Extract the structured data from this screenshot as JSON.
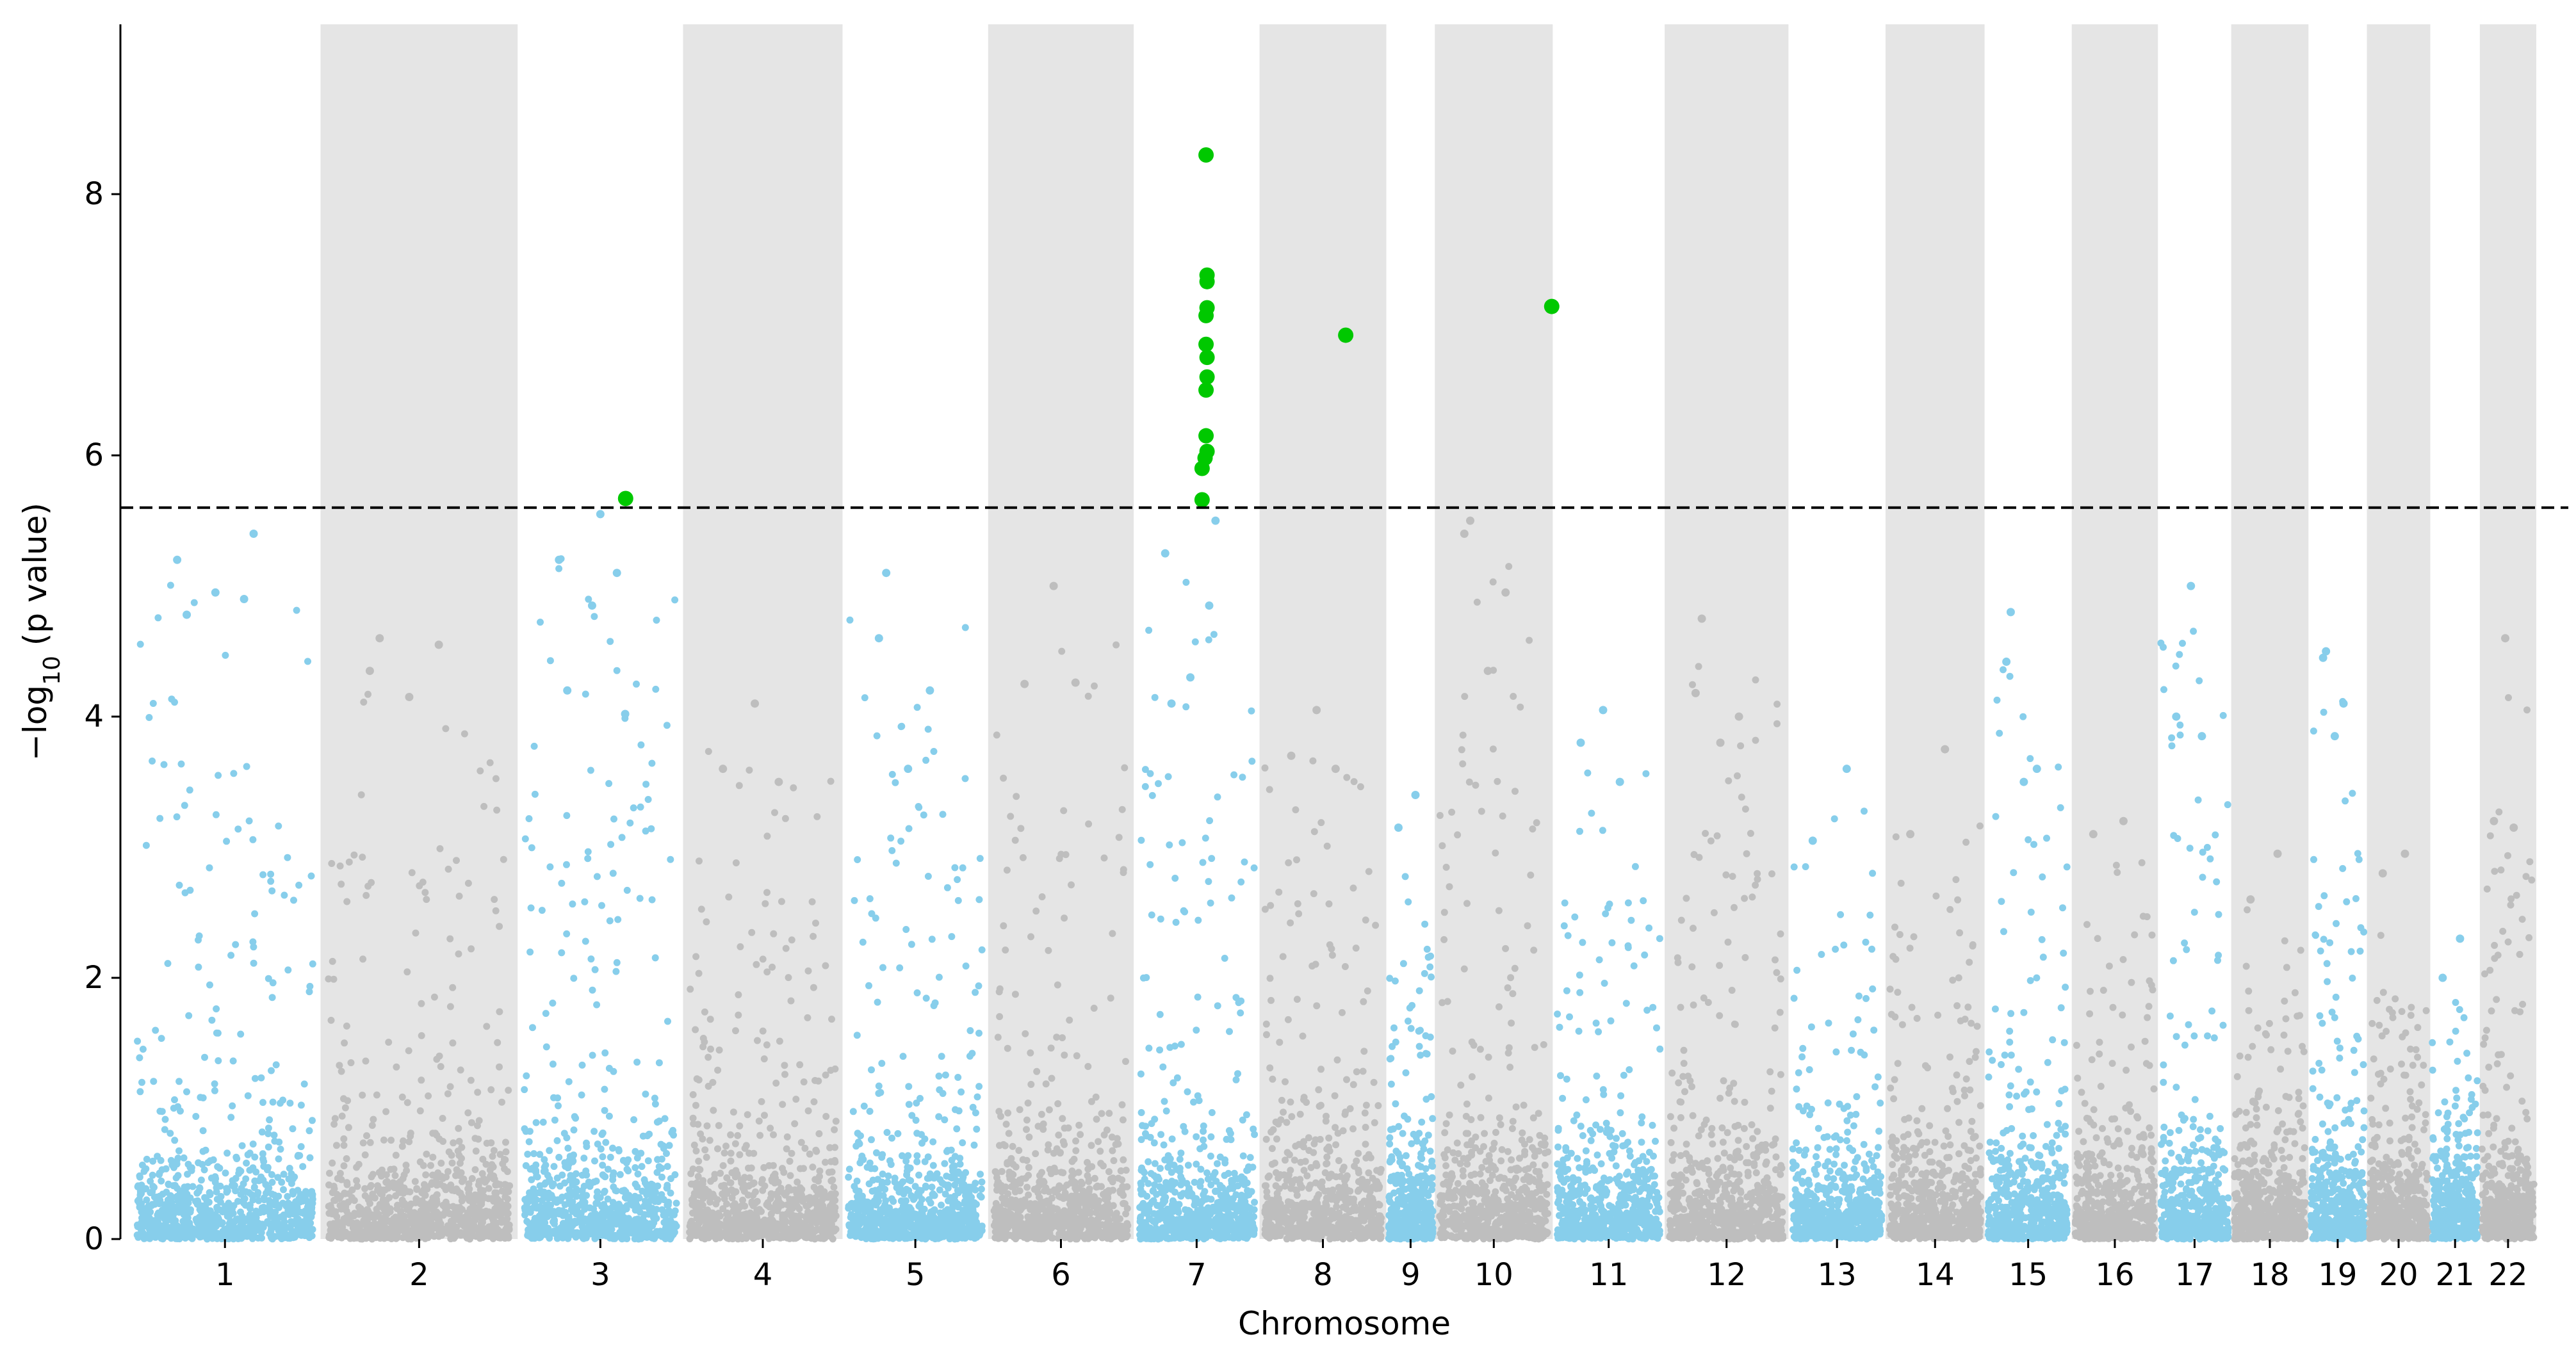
{
  "chart_data": {
    "type": "scatter",
    "subtype": "manhattan",
    "title": "",
    "xlabel": "Chromosome",
    "ylabel_main": "−log",
    "ylabel_sub": "10",
    "ylabel_tail": " (p value)",
    "ylim": [
      0,
      9.3
    ],
    "yticks": [
      0,
      2,
      4,
      6,
      8
    ],
    "significance_threshold": 5.6,
    "colors": {
      "odd_chromosome": "#87ceeb",
      "even_chromosome": "#bebebe",
      "significant": "#00c800",
      "band": "#e5e5e5",
      "threshold_line": "#000000"
    },
    "chromosomes": [
      {
        "label": "1",
        "start": 0,
        "end": 1.93,
        "band": false,
        "color": "odd",
        "max": 5.4,
        "hits": [
          5.2,
          4.9,
          4.95,
          4.78
        ]
      },
      {
        "label": "2",
        "start": 1.93,
        "end": 3.92,
        "band": true,
        "color": "even",
        "max": 4.6,
        "hits": [
          4.35,
          4.55,
          4.15
        ]
      },
      {
        "label": "3",
        "start": 3.92,
        "end": 5.59,
        "band": false,
        "color": "odd",
        "max": 5.55,
        "hits": [
          5.2,
          5.1,
          4.85,
          4.2,
          4.02
        ]
      },
      {
        "label": "4",
        "start": 5.59,
        "end": 7.2,
        "band": true,
        "color": "even",
        "max": 4.1,
        "hits": [
          3.6,
          3.5
        ]
      },
      {
        "label": "5",
        "start": 7.2,
        "end": 8.67,
        "band": false,
        "color": "odd",
        "max": 5.1,
        "hits": [
          4.6,
          4.2,
          3.6
        ]
      },
      {
        "label": "6",
        "start": 8.67,
        "end": 10.14,
        "band": true,
        "color": "even",
        "max": 5.0,
        "hits": [
          4.25,
          4.26
        ]
      },
      {
        "label": "7",
        "start": 10.14,
        "end": 11.41,
        "band": false,
        "color": "odd",
        "max": 5.5,
        "hits": [
          5.25,
          4.85,
          4.3,
          4.1
        ]
      },
      {
        "label": "8",
        "start": 11.41,
        "end": 12.69,
        "band": true,
        "color": "even",
        "max": 4.05,
        "hits": [
          3.7,
          3.6
        ]
      },
      {
        "label": "9",
        "start": 12.69,
        "end": 13.18,
        "band": false,
        "color": "odd",
        "max": 3.4,
        "hits": [
          3.15
        ]
      },
      {
        "label": "10",
        "start": 13.18,
        "end": 14.37,
        "band": true,
        "color": "even",
        "max": 5.5,
        "hits": [
          5.4,
          4.95,
          4.35
        ]
      },
      {
        "label": "11",
        "start": 14.37,
        "end": 15.5,
        "band": false,
        "color": "odd",
        "max": 4.05,
        "hits": [
          3.8,
          3.5
        ]
      },
      {
        "label": "12",
        "start": 15.5,
        "end": 16.75,
        "band": true,
        "color": "even",
        "max": 4.75,
        "hits": [
          4.18,
          4.0,
          3.8
        ]
      },
      {
        "label": "13",
        "start": 16.75,
        "end": 17.73,
        "band": false,
        "color": "odd",
        "max": 3.6,
        "hits": [
          3.05
        ]
      },
      {
        "label": "14",
        "start": 17.73,
        "end": 18.73,
        "band": true,
        "color": "even",
        "max": 3.75,
        "hits": [
          3.1
        ]
      },
      {
        "label": "15",
        "start": 18.73,
        "end": 19.61,
        "band": false,
        "color": "odd",
        "max": 4.8,
        "hits": [
          4.42,
          3.6,
          3.5
        ]
      },
      {
        "label": "16",
        "start": 19.61,
        "end": 20.48,
        "band": true,
        "color": "even",
        "max": 3.2,
        "hits": [
          3.1
        ]
      },
      {
        "label": "17",
        "start": 20.48,
        "end": 21.22,
        "band": false,
        "color": "odd",
        "max": 5.0,
        "hits": [
          4.0,
          3.85
        ]
      },
      {
        "label": "18",
        "start": 21.22,
        "end": 22.0,
        "band": true,
        "color": "even",
        "max": 2.95,
        "hits": [
          2.6
        ]
      },
      {
        "label": "19",
        "start": 22.0,
        "end": 22.59,
        "band": false,
        "color": "odd",
        "max": 4.5,
        "hits": [
          4.45,
          4.1,
          3.85
        ]
      },
      {
        "label": "20",
        "start": 22.59,
        "end": 23.23,
        "band": true,
        "color": "even",
        "max": 2.95,
        "hits": [
          2.8
        ]
      },
      {
        "label": "21",
        "start": 23.23,
        "end": 23.73,
        "band": false,
        "color": "odd",
        "max": 2.3,
        "hits": [
          2.0
        ]
      },
      {
        "label": "22",
        "start": 23.73,
        "end": 24.3,
        "band": true,
        "color": "even",
        "max": 4.6,
        "hits": [
          3.2,
          3.15
        ]
      }
    ],
    "significant_points": [
      {
        "chromosome": "3",
        "x": 5.01,
        "y": 5.67
      },
      {
        "chromosome": "7",
        "x": 10.87,
        "y": 8.3
      },
      {
        "chromosome": "7",
        "x": 10.88,
        "y": 7.38
      },
      {
        "chromosome": "7",
        "x": 10.88,
        "y": 7.33
      },
      {
        "chromosome": "7",
        "x": 10.88,
        "y": 7.13
      },
      {
        "chromosome": "7",
        "x": 10.87,
        "y": 7.07
      },
      {
        "chromosome": "7",
        "x": 10.87,
        "y": 6.85
      },
      {
        "chromosome": "7",
        "x": 10.88,
        "y": 6.75
      },
      {
        "chromosome": "7",
        "x": 10.88,
        "y": 6.6
      },
      {
        "chromosome": "7",
        "x": 10.87,
        "y": 6.5
      },
      {
        "chromosome": "7",
        "x": 10.87,
        "y": 6.15
      },
      {
        "chromosome": "7",
        "x": 10.88,
        "y": 6.03
      },
      {
        "chromosome": "7",
        "x": 10.86,
        "y": 5.98
      },
      {
        "chromosome": "7",
        "x": 10.83,
        "y": 5.9
      },
      {
        "chromosome": "7",
        "x": 10.83,
        "y": 5.66
      },
      {
        "chromosome": "8",
        "x": 12.28,
        "y": 6.92
      },
      {
        "chromosome": "10",
        "x": 14.36,
        "y": 7.14
      }
    ]
  }
}
